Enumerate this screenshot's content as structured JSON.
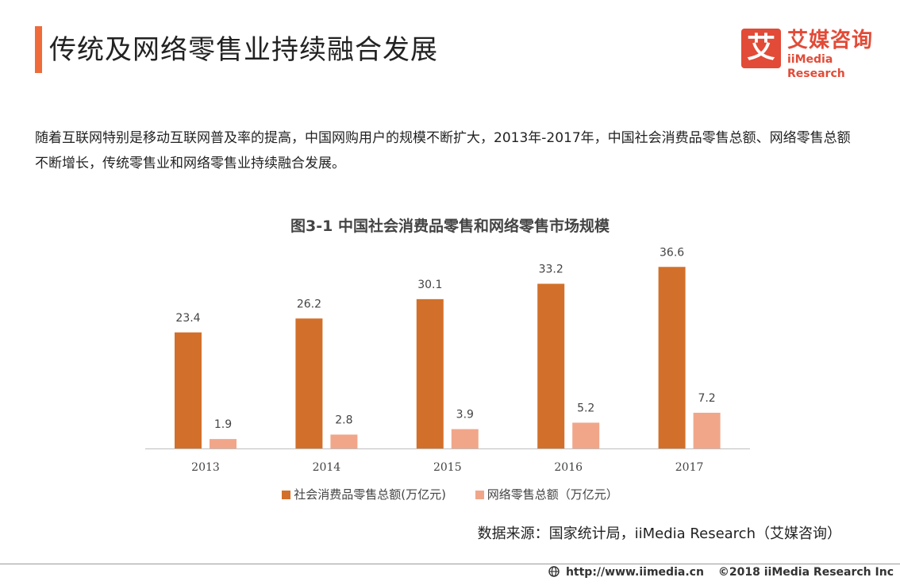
{
  "header": {
    "title": "传统及网络零售业持续融合发展"
  },
  "logo": {
    "mark": "艾",
    "cn": "艾媒咨询",
    "en": "iiMedia Research"
  },
  "intro": "随着互联网特别是移动互联网普及率的提高，中国网购用户的规模不断扩大，2013年-2017年，中国社会消费品零售总额、网络零售总额不断增长，传统零售业和网络零售业持续融合发展。",
  "chart_data": {
    "type": "bar",
    "title": "图3-1 中国社会消费品零售和网络零售市场规模",
    "categories": [
      "2013",
      "2014",
      "2015",
      "2016",
      "2017"
    ],
    "series": [
      {
        "name": "社会消费品零售总额(万亿元)",
        "values": [
          23.4,
          26.2,
          30.1,
          33.2,
          36.6
        ],
        "color": "#d2702b"
      },
      {
        "name": "网络零售总额（万亿元）",
        "values": [
          1.9,
          2.8,
          3.9,
          5.2,
          7.2
        ],
        "color": "#f1a68a"
      }
    ],
    "ylim": [
      0,
      40
    ],
    "grid": false,
    "legend": "bottom"
  },
  "source": "数据来源：国家统计局，iiMedia Research（艾媒咨询）",
  "footer": {
    "url": "http://www.iimedia.cn",
    "copyright": "©2018  iiMedia Research  Inc"
  }
}
